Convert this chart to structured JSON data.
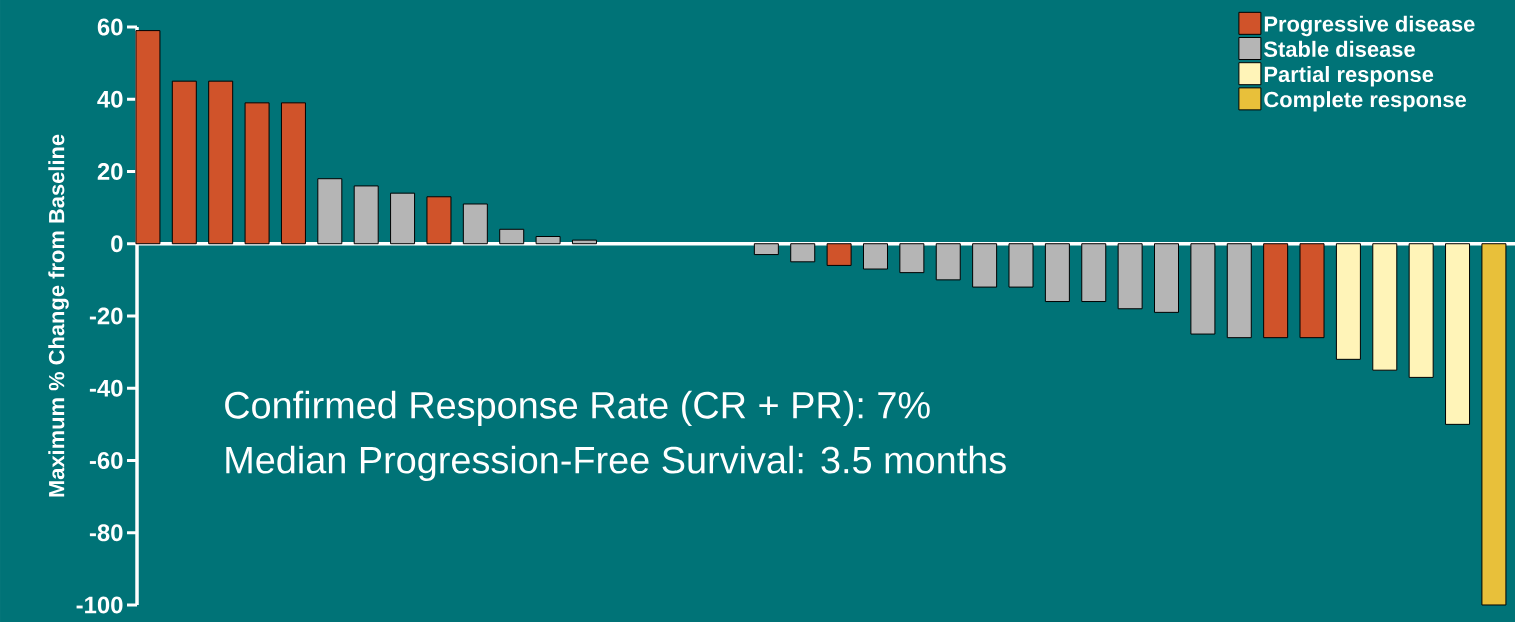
{
  "chart_data": {
    "type": "bar",
    "ylabel": "Maximum % Change from Baseline",
    "categories": [
      null,
      null,
      null,
      null,
      null,
      null,
      null,
      null,
      null,
      null,
      null,
      null,
      null,
      null,
      null,
      null,
      null,
      null,
      null,
      null,
      null,
      null,
      null,
      null,
      null,
      null,
      null,
      null,
      null,
      null,
      null,
      null,
      null,
      null,
      null,
      null,
      null,
      null
    ],
    "series": [
      {
        "name": "Progressive disease",
        "color": "#d0532a",
        "values": [
          59,
          45,
          45,
          39,
          39,
          null,
          null,
          null,
          13,
          null,
          null,
          null,
          null,
          null,
          null,
          null,
          null,
          null,
          null,
          -6,
          null,
          null,
          null,
          null,
          null,
          null,
          null,
          null,
          null,
          null,
          null,
          -26,
          -26,
          null,
          null,
          null,
          null,
          null
        ]
      },
      {
        "name": "Stable disease",
        "color": "#b5b5b5",
        "values": [
          null,
          null,
          null,
          null,
          null,
          18,
          16,
          14,
          null,
          11,
          4,
          2,
          1,
          null,
          null,
          null,
          null,
          -3,
          -5,
          null,
          -7,
          -8,
          -10,
          -12,
          -12,
          -16,
          -16,
          -18,
          -19,
          -25,
          -26,
          null,
          null,
          null,
          null,
          null,
          null,
          null
        ]
      },
      {
        "name": "Partial response",
        "color": "#fff4b8",
        "values": [
          null,
          null,
          null,
          null,
          null,
          null,
          null,
          null,
          null,
          null,
          null,
          null,
          null,
          null,
          null,
          null,
          null,
          null,
          null,
          null,
          null,
          null,
          null,
          null,
          null,
          null,
          null,
          null,
          null,
          null,
          null,
          null,
          null,
          -32,
          -35,
          -37,
          -50,
          null
        ]
      },
      {
        "name": "Complete response",
        "color": "#e8c03a",
        "values": [
          null,
          null,
          null,
          null,
          null,
          null,
          null,
          null,
          null,
          null,
          null,
          null,
          null,
          null,
          null,
          null,
          null,
          null,
          null,
          null,
          null,
          null,
          null,
          null,
          null,
          null,
          null,
          null,
          null,
          null,
          null,
          null,
          null,
          null,
          null,
          null,
          null,
          -100
        ]
      }
    ],
    "ylim": [
      -100,
      60
    ],
    "yticks": [
      -100,
      -80,
      -60,
      -40,
      -20,
      0,
      20,
      40,
      60
    ],
    "tick_labels": "y",
    "legend": "top right",
    "annotations": [
      "Confirmed Response Rate (CR + PR): 7%",
      "Median Progression-Free Survival: 3.5 months"
    ]
  }
}
